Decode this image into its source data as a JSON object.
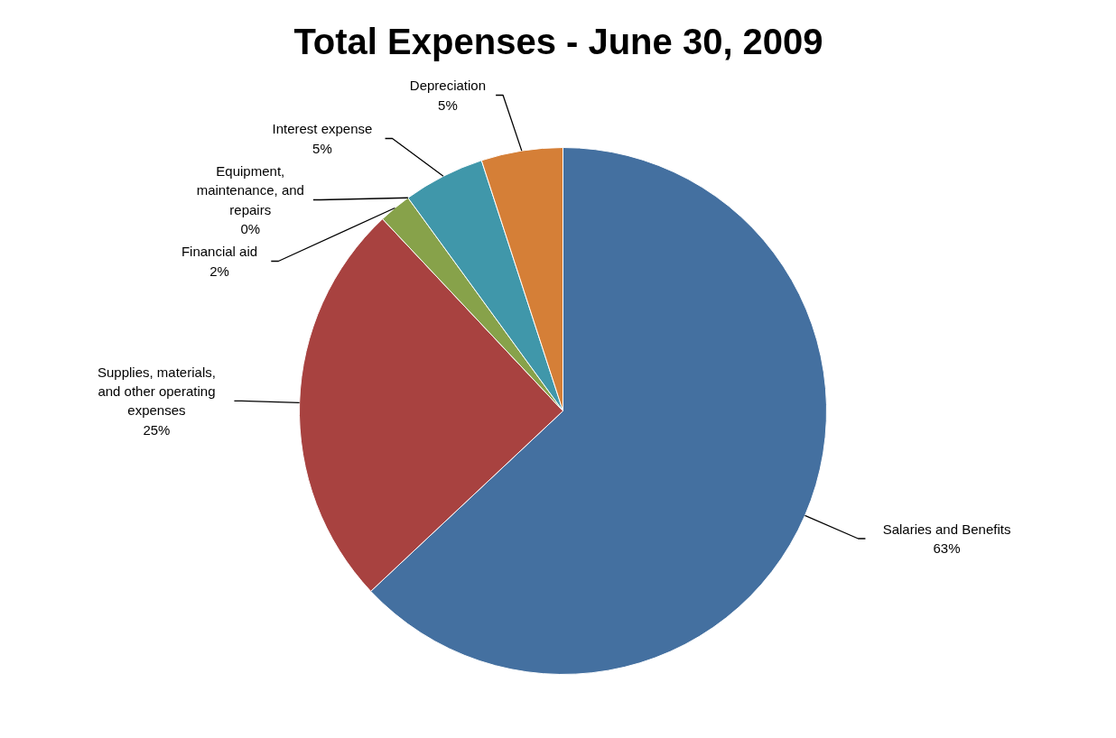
{
  "chart_data": {
    "type": "pie",
    "title": "Total Expenses - June 30, 2009",
    "categories": [
      "Salaries and Benefits",
      "Supplies, materials, and other operating expenses",
      "Financial aid",
      "Equipment, maintenance, and repairs",
      "Interest expense",
      "Depreciation"
    ],
    "values": [
      63,
      25,
      2,
      0,
      5,
      5
    ],
    "colors": [
      "#4470a0",
      "#a84240",
      "#87a24a",
      "#7f6a9a",
      "#4097aa",
      "#d57f37"
    ],
    "value_labels": [
      "63%",
      "25%",
      "2%",
      "0%",
      "5%",
      "5%"
    ]
  }
}
